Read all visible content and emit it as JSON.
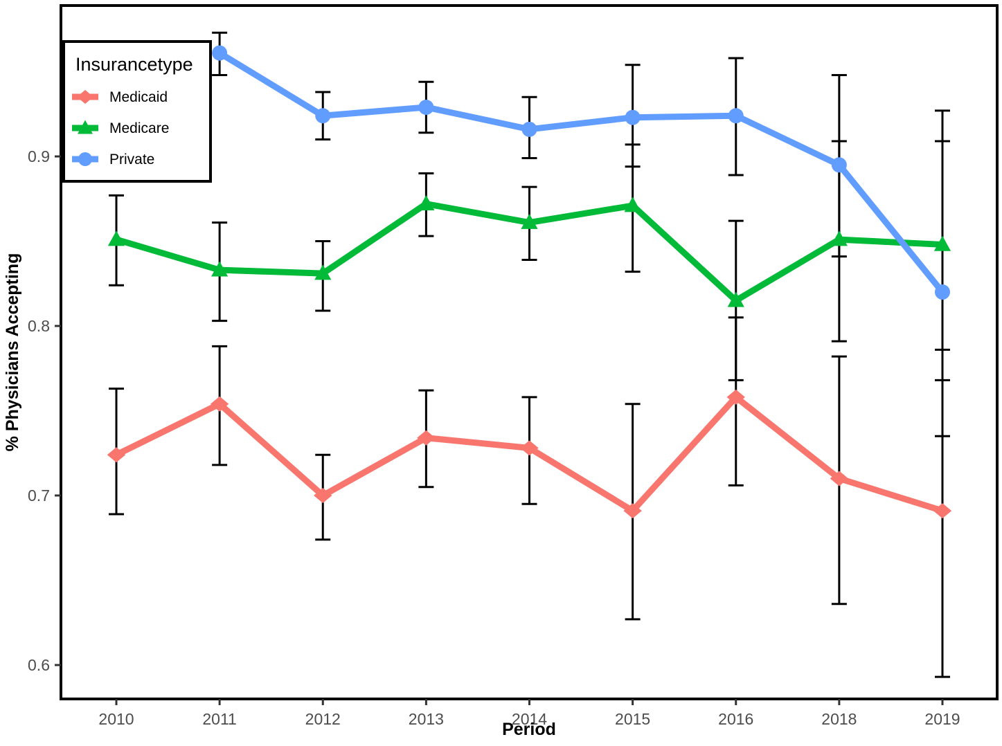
{
  "chart_data": {
    "type": "line",
    "title": "",
    "xlabel": "Period",
    "ylabel": "% Physicians Accepting",
    "legend_title": "Insurancetype",
    "legend_position": "top-left-inside",
    "grid": false,
    "error_bars": true,
    "categories": [
      "2010",
      "2011",
      "2012",
      "2013",
      "2014",
      "2015",
      "2016",
      "2018",
      "2019"
    ],
    "y_tick_labels": [
      "0.6",
      "0.7",
      "0.8",
      "0.9"
    ],
    "y_tick_values": [
      0.6,
      0.7,
      0.8,
      0.9
    ],
    "ylim": [
      0.58,
      0.989
    ],
    "series": [
      {
        "name": "Medicaid",
        "color": "#F8766D",
        "marker": "diamond",
        "values": [
          0.724,
          0.754,
          0.7,
          0.734,
          0.728,
          0.691,
          0.758,
          0.71,
          0.691
        ],
        "ci_low": [
          0.689,
          0.718,
          0.674,
          0.705,
          0.695,
          0.627,
          0.706,
          0.636,
          0.593
        ],
        "ci_high": [
          0.763,
          0.788,
          0.724,
          0.762,
          0.758,
          0.754,
          0.805,
          0.782,
          0.768
        ]
      },
      {
        "name": "Medicare",
        "color": "#00BA38",
        "marker": "triangle",
        "values": [
          0.851,
          0.833,
          0.831,
          0.872,
          0.861,
          0.871,
          0.815,
          0.851,
          0.848
        ],
        "ci_low": [
          0.824,
          0.803,
          0.809,
          0.853,
          0.839,
          0.832,
          0.768,
          0.791,
          0.786
        ],
        "ci_high": [
          0.877,
          0.861,
          0.85,
          0.89,
          0.882,
          0.907,
          0.862,
          0.909,
          0.909
        ]
      },
      {
        "name": "Private",
        "color": "#619CFF",
        "marker": "circle",
        "values": [
          null,
          0.961,
          0.924,
          0.929,
          0.916,
          0.923,
          0.924,
          0.895,
          0.82
        ],
        "ci_low": [
          null,
          0.948,
          0.91,
          0.914,
          0.899,
          0.894,
          0.889,
          0.841,
          0.735
        ],
        "ci_high": [
          null,
          0.973,
          0.938,
          0.944,
          0.935,
          0.954,
          0.958,
          0.948,
          0.927
        ]
      }
    ]
  }
}
